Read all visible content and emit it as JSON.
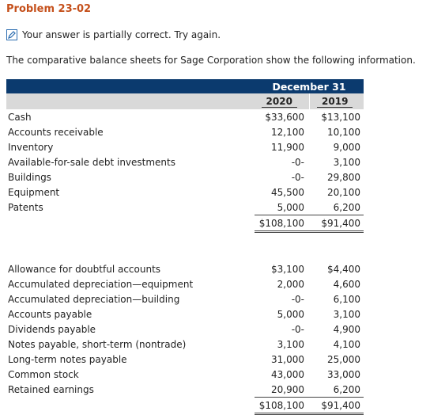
{
  "problem": {
    "title": "Problem 23-02"
  },
  "status": {
    "icon": "pencil-icon",
    "text": "Your answer is partially correct.  Try again."
  },
  "intro": "The comparative balance sheets for Sage Corporation show the following information.",
  "table": {
    "period_header": "December 31",
    "years": [
      "2020",
      "2019"
    ],
    "assets": [
      {
        "label": "Cash",
        "y2020": "$33,600",
        "y2019": "$13,100"
      },
      {
        "label": "Accounts receivable",
        "y2020": "12,100",
        "y2019": "10,100"
      },
      {
        "label": "Inventory",
        "y2020": "11,900",
        "y2019": "9,000"
      },
      {
        "label": "Available-for-sale debt investments",
        "y2020": "-0-",
        "y2019": "3,100"
      },
      {
        "label": "Buildings",
        "y2020": "-0-",
        "y2019": "29,800"
      },
      {
        "label": "Equipment",
        "y2020": "45,500",
        "y2019": "20,100"
      },
      {
        "label": "Patents",
        "y2020": "5,000",
        "y2019": "6,200"
      }
    ],
    "assets_total": {
      "y2020": "$108,100",
      "y2019": "$91,400"
    },
    "liabilities": [
      {
        "label": "Allowance for doubtful accounts",
        "y2020": "$3,100",
        "y2019": "$4,400"
      },
      {
        "label": "Accumulated depreciation—equipment",
        "y2020": "2,000",
        "y2019": "4,600"
      },
      {
        "label": "Accumulated depreciation—building",
        "y2020": "-0-",
        "y2019": "6,100"
      },
      {
        "label": "Accounts payable",
        "y2020": "5,000",
        "y2019": "3,100"
      },
      {
        "label": "Dividends payable",
        "y2020": "-0-",
        "y2019": "4,900"
      },
      {
        "label": "Notes payable, short-term (nontrade)",
        "y2020": "3,100",
        "y2019": "4,100"
      },
      {
        "label": "Long-term notes payable",
        "y2020": "31,000",
        "y2019": "25,000"
      },
      {
        "label": "Common stock",
        "y2020": "43,000",
        "y2019": "33,000"
      },
      {
        "label": "Retained earnings",
        "y2020": "20,900",
        "y2019": "6,200"
      }
    ],
    "liabilities_total": {
      "y2020": "$108,100",
      "y2019": "$91,400"
    }
  },
  "colors": {
    "title": "#c5501b",
    "header_bg": "#0b3a6e",
    "subheader_bg": "#d9d9d9",
    "icon": "#2b6cb0"
  }
}
